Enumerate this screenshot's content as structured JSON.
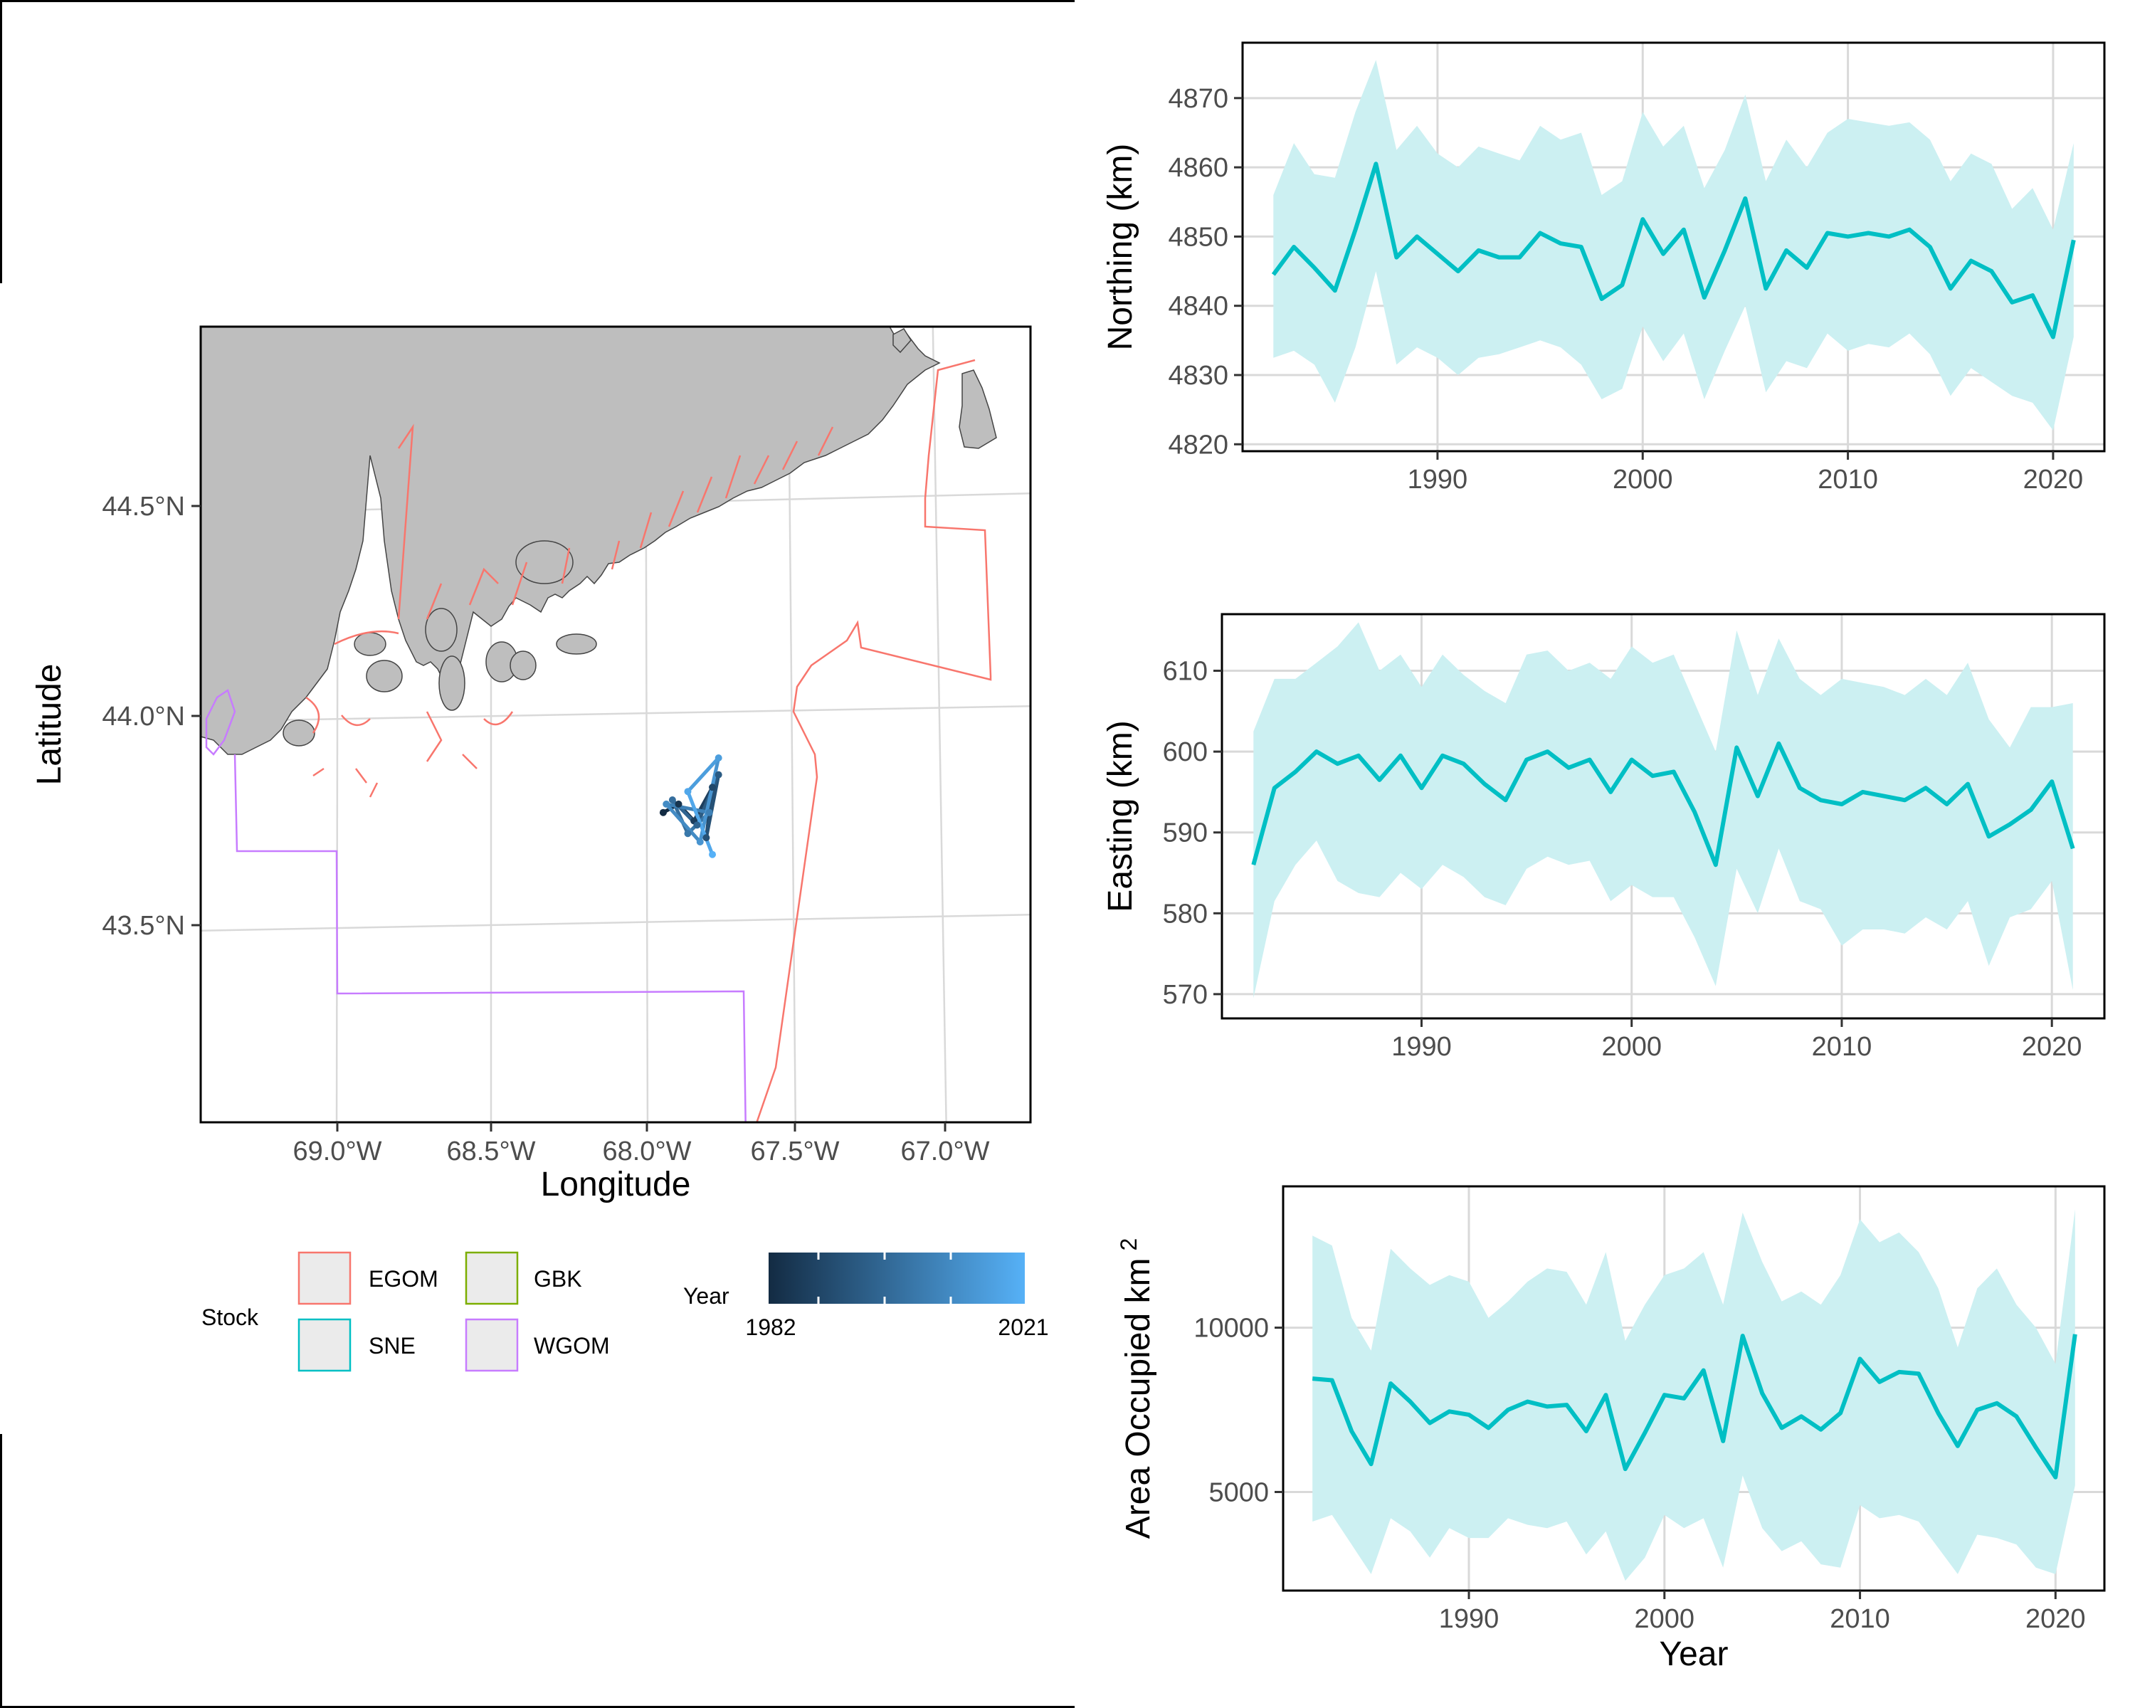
{
  "map": {
    "xlabel": "Longitude",
    "ylabel": "Latitude",
    "lon_ticks": [
      "69.0°W",
      "68.5°W",
      "68.0°W",
      "67.5°W",
      "67.0°W"
    ],
    "lat_ticks": [
      "44.5°N",
      "44.0°N",
      "43.5°N"
    ],
    "land_color": "#bebebe",
    "centroid_points": [
      [
        -67.94,
        43.77
      ],
      [
        -67.89,
        43.79
      ],
      [
        -67.84,
        43.75
      ],
      [
        -67.78,
        43.83
      ],
      [
        -67.8,
        43.71
      ],
      [
        -67.76,
        43.86
      ],
      [
        -67.83,
        43.74
      ],
      [
        -67.91,
        43.8
      ],
      [
        -67.86,
        43.72
      ],
      [
        -67.79,
        43.77
      ],
      [
        -67.93,
        43.79
      ],
      [
        -67.82,
        43.7
      ],
      [
        -67.76,
        43.9
      ],
      [
        -67.86,
        43.82
      ],
      [
        -67.78,
        43.67
      ]
    ]
  },
  "legend": {
    "stock_title": "Stock",
    "stock_items": [
      {
        "label": "EGOM",
        "color": "#f8766d"
      },
      {
        "label": "GBK",
        "color": "#7cae00"
      },
      {
        "label": "SNE",
        "color": "#00bfc4"
      },
      {
        "label": "WGOM",
        "color": "#c77cff"
      }
    ],
    "year_title": "Year",
    "year_min": "1982",
    "year_max": "2021",
    "year_color_low": "#132b43",
    "year_color_high": "#56b1f7"
  },
  "series_color": "#00bfc4",
  "band_color": "#ccf0f2",
  "chart_data": [
    {
      "type": "line",
      "xlabel": "",
      "ylabel": "Northing (km)",
      "xlim": [
        1980.5,
        2022.5
      ],
      "ylim": [
        4819,
        4878
      ],
      "xticks": [
        1990,
        2000,
        2010,
        2020
      ],
      "yticks": [
        4820,
        4830,
        4840,
        4850,
        4860,
        4870
      ],
      "x": [
        1982,
        1983,
        1984,
        1985,
        1986,
        1987,
        1988,
        1989,
        1990,
        1991,
        1992,
        1993,
        1994,
        1995,
        1996,
        1997,
        1998,
        1999,
        2000,
        2001,
        2002,
        2003,
        2004,
        2005,
        2006,
        2007,
        2008,
        2009,
        2010,
        2011,
        2012,
        2013,
        2014,
        2015,
        2016,
        2017,
        2018,
        2019,
        2020,
        2021
      ],
      "y": [
        4844.5,
        4848.5,
        4845.5,
        4842.2,
        4851,
        4860.5,
        4847,
        4850,
        4847.5,
        4845,
        4848,
        4847,
        4847,
        4850.5,
        4849,
        4848.5,
        4841,
        4843,
        4852.5,
        4847.5,
        4851,
        4841.2,
        4848,
        4855.5,
        4842.5,
        4848,
        4845.5,
        4850.5,
        4850,
        4850.5,
        4850,
        4851,
        4848.5,
        4842.5,
        4846.5,
        4845,
        4840.5,
        4841.5,
        4835.5,
        4849.5
      ],
      "upper": [
        4856,
        4863.5,
        4859,
        4858.5,
        4868,
        4875.5,
        4862.5,
        4866,
        4862,
        4860,
        4863,
        4862,
        4861,
        4866,
        4864,
        4865,
        4856,
        4858,
        4868,
        4863,
        4866,
        4857,
        4862.5,
        4870.5,
        4858,
        4864,
        4860,
        4865,
        4867,
        4866.5,
        4866,
        4866.5,
        4864,
        4858,
        4862,
        4860.5,
        4854,
        4857,
        4851,
        4863.5
      ],
      "lower": [
        4832.5,
        4833.5,
        4831.5,
        4826,
        4834,
        4845,
        4831.5,
        4834,
        4832.5,
        4830,
        4832.5,
        4833,
        4834,
        4835,
        4834,
        4831.5,
        4826.5,
        4828,
        4837,
        4832,
        4836,
        4826.5,
        4833.5,
        4840,
        4827.5,
        4832,
        4831,
        4836,
        4833.5,
        4834.5,
        4834,
        4836,
        4833,
        4827,
        4831,
        4829,
        4827,
        4826,
        4822,
        4835.5
      ]
    },
    {
      "type": "line",
      "xlabel": "",
      "ylabel": "Easting (km)",
      "xlim": [
        1980.5,
        2022.5
      ],
      "ylim": [
        567,
        617
      ],
      "xticks": [
        1990,
        2000,
        2010,
        2020
      ],
      "yticks": [
        570,
        580,
        590,
        600,
        610
      ],
      "x": [
        1982,
        1983,
        1984,
        1985,
        1986,
        1987,
        1988,
        1989,
        1990,
        1991,
        1992,
        1993,
        1994,
        1995,
        1996,
        1997,
        1998,
        1999,
        2000,
        2001,
        2002,
        2003,
        2004,
        2005,
        2006,
        2007,
        2008,
        2009,
        2010,
        2011,
        2012,
        2013,
        2014,
        2015,
        2016,
        2017,
        2018,
        2019,
        2020,
        2021
      ],
      "y": [
        586,
        595.5,
        597.5,
        600,
        598.5,
        599.5,
        596.5,
        599.5,
        595.5,
        599.5,
        598.5,
        596,
        594,
        599,
        600,
        598,
        599,
        595,
        599,
        597,
        597.5,
        592.5,
        586,
        600.5,
        594.5,
        601,
        595.5,
        594,
        593.5,
        595,
        594.5,
        594,
        595.5,
        593.5,
        596,
        589.5,
        591,
        592.8,
        596.3,
        588
      ],
      "upper": [
        602.5,
        609,
        609,
        611,
        613,
        616,
        610,
        612,
        608,
        612,
        609.5,
        607.5,
        606,
        612,
        612.5,
        610,
        611,
        609,
        613,
        611,
        612,
        606,
        600,
        615,
        607,
        614,
        609,
        607,
        609,
        608.5,
        608,
        607,
        609,
        607,
        611,
        604,
        600.5,
        605.5,
        605.5,
        606
      ],
      "lower": [
        569.5,
        581.5,
        586,
        589,
        584,
        582.5,
        582,
        585,
        583,
        586,
        584.5,
        582,
        581,
        585.5,
        587,
        586,
        586.5,
        581.5,
        583.5,
        582,
        582,
        577,
        571,
        585.5,
        580,
        588,
        581.5,
        580.5,
        576,
        578,
        578,
        577.5,
        579.5,
        578,
        581.5,
        573.5,
        579.5,
        580.5,
        584,
        570.5
      ]
    },
    {
      "type": "line",
      "xlabel": "Year",
      "ylabel": "Area Occupied km",
      "ylabel_superscript": "2",
      "xlim": [
        1980.5,
        2022.5
      ],
      "ylim": [
        2000,
        14300
      ],
      "xticks": [
        1990,
        2000,
        2010,
        2020
      ],
      "yticks": [
        5000,
        10000
      ],
      "x": [
        1982,
        1983,
        1984,
        1985,
        1986,
        1987,
        1988,
        1989,
        1990,
        1991,
        1992,
        1993,
        1994,
        1995,
        1996,
        1997,
        1998,
        1999,
        2000,
        2001,
        2002,
        2003,
        2004,
        2005,
        2006,
        2007,
        2008,
        2009,
        2010,
        2011,
        2012,
        2013,
        2014,
        2015,
        2016,
        2017,
        2018,
        2019,
        2020,
        2021
      ],
      "y": [
        8450,
        8400,
        6850,
        5850,
        8300,
        7750,
        7100,
        7450,
        7350,
        6950,
        7500,
        7750,
        7600,
        7650,
        6850,
        7950,
        5700,
        6800,
        7950,
        7850,
        8700,
        6550,
        9750,
        8000,
        6950,
        7300,
        6900,
        7400,
        9050,
        8350,
        8650,
        8600,
        7400,
        6400,
        7500,
        7700,
        7300,
        6350,
        5450,
        9800
      ],
      "upper": [
        12800,
        12500,
        10300,
        9300,
        12400,
        11800,
        11300,
        11600,
        11400,
        10300,
        10800,
        11400,
        11800,
        11700,
        10700,
        12300,
        9600,
        10700,
        11600,
        11800,
        12300,
        10700,
        13500,
        12000,
        10800,
        11100,
        10700,
        11600,
        13300,
        12600,
        12900,
        12300,
        11200,
        9400,
        11200,
        11800,
        10700,
        10000,
        8900,
        13600
      ],
      "lower": [
        4100,
        4300,
        3400,
        2500,
        4200,
        3800,
        3000,
        3900,
        3600,
        3600,
        4200,
        4000,
        3900,
        4100,
        3100,
        3800,
        2300,
        3000,
        4300,
        3900,
        4200,
        2700,
        5500,
        3900,
        3200,
        3500,
        2800,
        2700,
        4600,
        4200,
        4300,
        4100,
        3300,
        2500,
        3700,
        3600,
        3400,
        2700,
        2500,
        5200
      ]
    }
  ]
}
